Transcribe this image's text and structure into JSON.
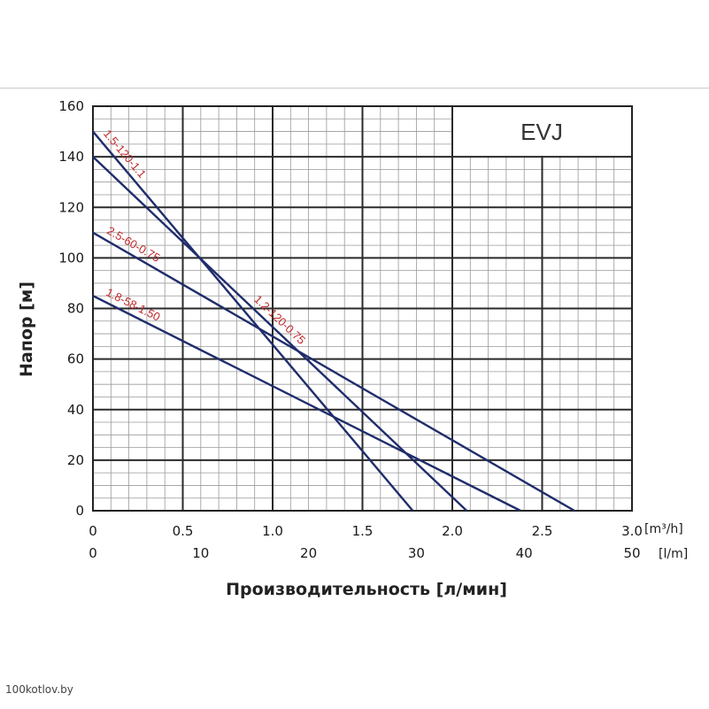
{
  "chart_data": {
    "type": "line",
    "title": "EVJ",
    "xlabel": "Производительность [л/мин]",
    "ylabel": "Напор [м]",
    "x_unit_top": "[m³/h]",
    "x_unit_bottom": "[l/m]",
    "xlim": [
      0,
      3.0
    ],
    "ylim": [
      0,
      160
    ],
    "x_ticks_top": [
      "0",
      "0.5",
      "1.0",
      "1.5",
      "2.0",
      "2.5",
      "3.0"
    ],
    "x_ticks_bottom": [
      "0",
      "10",
      "20",
      "30",
      "40",
      "50"
    ],
    "y_ticks": [
      "0",
      "20",
      "40",
      "60",
      "80",
      "100",
      "120",
      "140",
      "160"
    ],
    "grid": true,
    "series": [
      {
        "name": "1.5-120-1.1",
        "x": [
          0,
          1.78
        ],
        "y": [
          150,
          0
        ]
      },
      {
        "name": "1.2-120-0.75",
        "x": [
          0,
          2.08
        ],
        "y": [
          140,
          0
        ]
      },
      {
        "name": "2.5-60-0.75",
        "x": [
          0,
          2.68
        ],
        "y": [
          110,
          0
        ]
      },
      {
        "name": "1.8-58-1.50",
        "x": [
          0,
          2.38
        ],
        "y": [
          85,
          0
        ]
      }
    ]
  },
  "colors": {
    "line": "#1f2d6b",
    "label": "#c0282a",
    "grid": "#2a2a2a",
    "minor_grid": "#9a9a9a"
  },
  "watermark": "100kotlov.by"
}
